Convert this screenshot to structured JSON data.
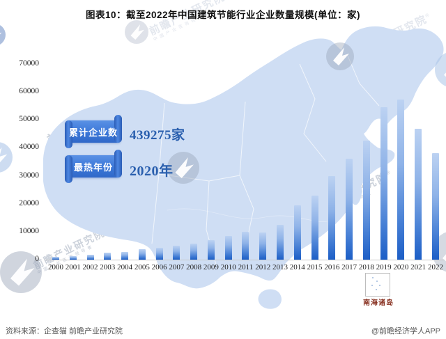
{
  "title": "图表10：截至2022年中国建筑节能行业企业数量规模(单位：家)",
  "callouts": {
    "cumulative_label": "累计企业数",
    "cumulative_value": "439275家",
    "hottest_label": "最热年份",
    "hottest_value": "2020年"
  },
  "map": {
    "inset_label": "南海诸岛"
  },
  "watermark": {
    "text": "前瞻产业研究院",
    "reg": "®",
    "subtext": "中国产业咨询领导者"
  },
  "footer": {
    "source": "资料来源：企查猫 前瞻产业研究院",
    "credit": "@前瞻经济学人APP"
  },
  "colors": {
    "bar_top": "#bcd2f2",
    "bar_bottom": "#1c5ec6",
    "ribbon_blue": "#3b77d8",
    "value_text": "#2a5fae",
    "map_fill": "#cfdef4",
    "inset_label": "#8a3424"
  },
  "chart_data": {
    "type": "bar",
    "title": "截至2022年中国建筑节能行业企业数量规模(单位：家)",
    "categories": [
      "2000",
      "2001",
      "2002",
      "2003",
      "2004",
      "2005",
      "2006",
      "2007",
      "2008",
      "2009",
      "2010",
      "2011",
      "2012",
      "2013",
      "2014",
      "2015",
      "2016",
      "2017",
      "2018",
      "2019",
      "2020",
      "2021",
      "2022"
    ],
    "values": [
      1000,
      1300,
      1700,
      2600,
      2900,
      3700,
      4300,
      5000,
      5800,
      7000,
      8450,
      10100,
      9800,
      12600,
      19500,
      23000,
      30000,
      36200,
      42700,
      54400,
      57300,
      46900,
      38100
    ],
    "xlabel": "",
    "ylabel": "",
    "ylim": [
      0,
      70000
    ],
    "yticks": [
      0,
      10000,
      20000,
      30000,
      40000,
      50000,
      60000,
      70000
    ],
    "grid": false,
    "legend": false,
    "annotations": [
      {
        "label": "累计企业数",
        "value": "439275家"
      },
      {
        "label": "最热年份",
        "value": "2020年"
      }
    ]
  }
}
